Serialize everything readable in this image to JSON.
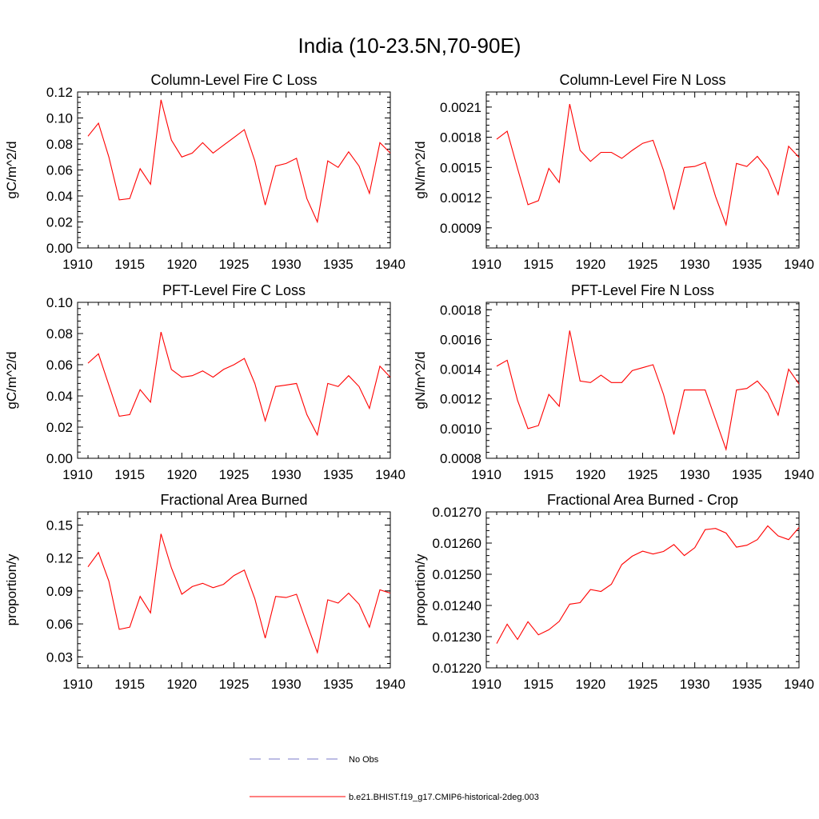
{
  "figure": {
    "title": "India (10-23.5N,70-90E)"
  },
  "legend": {
    "placement": "bottom-center",
    "entries": [
      {
        "label": "No Obs",
        "color": "#7b7bc8",
        "style": "dashed"
      },
      {
        "label": "b.e21.BHIST.f19_g17.CMIP6-historical-2deg.003",
        "color": "#ff0000",
        "style": "solid"
      }
    ]
  },
  "chart_data": [
    {
      "type": "line",
      "title": "Column-Level Fire C Loss",
      "xlabel": "",
      "ylabel": "gC/m^2/d",
      "xlim": [
        1910,
        1940
      ],
      "ylim": [
        0,
        0.12
      ],
      "xticks": [
        "1910",
        "1915",
        "1920",
        "1925",
        "1930",
        "1935",
        "1940"
      ],
      "yticks": [
        "0.00",
        "0.02",
        "0.04",
        "0.06",
        "0.08",
        "0.10",
        "0.12"
      ],
      "grid": false,
      "series": [
        {
          "name": "b.e21.BHIST.f19_g17.CMIP6-historical-2deg.003",
          "color": "#ff0000",
          "x": [
            1911,
            1912,
            1913,
            1914,
            1915,
            1916,
            1917,
            1918,
            1919,
            1920,
            1921,
            1922,
            1923,
            1924,
            1925,
            1926,
            1927,
            1928,
            1929,
            1930,
            1931,
            1932,
            1933,
            1934,
            1935,
            1936,
            1937,
            1938,
            1939,
            1940
          ],
          "y": [
            0.086,
            0.096,
            0.07,
            0.037,
            0.038,
            0.061,
            0.049,
            0.114,
            0.083,
            0.07,
            0.073,
            0.081,
            0.073,
            0.079,
            0.085,
            0.091,
            0.067,
            0.033,
            0.063,
            0.065,
            0.069,
            0.038,
            0.02,
            0.067,
            0.062,
            0.074,
            0.063,
            0.042,
            0.081,
            0.073
          ]
        }
      ]
    },
    {
      "type": "line",
      "title": "Column-Level Fire N Loss",
      "xlabel": "",
      "ylabel": "gN/m^2/d",
      "xlim": [
        1910,
        1940
      ],
      "ylim": [
        0.0007,
        0.00225
      ],
      "xticks": [
        "1910",
        "1915",
        "1920",
        "1925",
        "1930",
        "1935",
        "1940"
      ],
      "ytick_values": [
        0.0009,
        0.0012,
        0.0015,
        0.0018,
        0.0021
      ],
      "yticks": [
        "0.0009",
        "0.0012",
        "0.0015",
        "0.0018",
        "0.0021"
      ],
      "grid": false,
      "series": [
        {
          "name": "b.e21.BHIST.f19_g17.CMIP6-historical-2deg.003",
          "color": "#ff0000",
          "x": [
            1911,
            1912,
            1913,
            1914,
            1915,
            1916,
            1917,
            1918,
            1919,
            1920,
            1921,
            1922,
            1923,
            1924,
            1925,
            1926,
            1927,
            1928,
            1929,
            1930,
            1931,
            1932,
            1933,
            1934,
            1935,
            1936,
            1937,
            1938,
            1939,
            1940
          ],
          "y": [
            0.00178,
            0.00186,
            0.00149,
            0.00113,
            0.00117,
            0.00149,
            0.00135,
            0.00213,
            0.00167,
            0.00156,
            0.00165,
            0.00165,
            0.00159,
            0.00167,
            0.00174,
            0.00177,
            0.00147,
            0.00108,
            0.0015,
            0.00151,
            0.00155,
            0.00121,
            0.00093,
            0.00154,
            0.00151,
            0.00161,
            0.00148,
            0.00123,
            0.00171,
            0.0016
          ]
        }
      ]
    },
    {
      "type": "line",
      "title": "PFT-Level Fire C Loss",
      "xlabel": "",
      "ylabel": "gC/m^2/d",
      "xlim": [
        1910,
        1940
      ],
      "ylim": [
        0,
        0.1
      ],
      "xticks": [
        "1910",
        "1915",
        "1920",
        "1925",
        "1930",
        "1935",
        "1940"
      ],
      "yticks": [
        "0.00",
        "0.02",
        "0.04",
        "0.06",
        "0.08",
        "0.10"
      ],
      "grid": false,
      "series": [
        {
          "name": "b.e21.BHIST.f19_g17.CMIP6-historical-2deg.003",
          "color": "#ff0000",
          "x": [
            1911,
            1912,
            1913,
            1914,
            1915,
            1916,
            1917,
            1918,
            1919,
            1920,
            1921,
            1922,
            1923,
            1924,
            1925,
            1926,
            1927,
            1928,
            1929,
            1930,
            1931,
            1932,
            1933,
            1934,
            1935,
            1936,
            1937,
            1938,
            1939,
            1940
          ],
          "y": [
            0.061,
            0.067,
            0.047,
            0.027,
            0.028,
            0.044,
            0.036,
            0.081,
            0.057,
            0.052,
            0.053,
            0.056,
            0.052,
            0.057,
            0.06,
            0.064,
            0.048,
            0.024,
            0.046,
            0.047,
            0.048,
            0.028,
            0.015,
            0.048,
            0.046,
            0.053,
            0.046,
            0.032,
            0.059,
            0.052
          ]
        }
      ]
    },
    {
      "type": "line",
      "title": "PFT-Level Fire N Loss",
      "xlabel": "",
      "ylabel": "gN/m^2/d",
      "xlim": [
        1910,
        1940
      ],
      "ylim": [
        0.0008,
        0.00185
      ],
      "xticks": [
        "1910",
        "1915",
        "1920",
        "1925",
        "1930",
        "1935",
        "1940"
      ],
      "ytick_values": [
        0.0008,
        0.001,
        0.0012,
        0.0014,
        0.0016,
        0.0018
      ],
      "yticks": [
        "0.0008",
        "0.0010",
        "0.0012",
        "0.0014",
        "0.0016",
        "0.0018"
      ],
      "grid": false,
      "series": [
        {
          "name": "b.e21.BHIST.f19_g17.CMIP6-historical-2deg.003",
          "color": "#ff0000",
          "x": [
            1911,
            1912,
            1913,
            1914,
            1915,
            1916,
            1917,
            1918,
            1919,
            1920,
            1921,
            1922,
            1923,
            1924,
            1925,
            1926,
            1927,
            1928,
            1929,
            1930,
            1931,
            1932,
            1933,
            1934,
            1935,
            1936,
            1937,
            1938,
            1939,
            1940
          ],
          "y": [
            0.00142,
            0.00146,
            0.00119,
            0.001,
            0.00102,
            0.00123,
            0.00115,
            0.00166,
            0.00132,
            0.00131,
            0.00136,
            0.00131,
            0.00131,
            0.00139,
            0.00141,
            0.00143,
            0.00123,
            0.00096,
            0.00126,
            0.00126,
            0.00126,
            0.00106,
            0.00086,
            0.00126,
            0.00127,
            0.00132,
            0.00124,
            0.00109,
            0.0014,
            0.0013
          ]
        }
      ]
    },
    {
      "type": "line",
      "title": "Fractional Area Burned",
      "xlabel": "",
      "ylabel": "proportion/y",
      "xlim": [
        1910,
        1940
      ],
      "ylim": [
        0.02,
        0.162
      ],
      "xticks": [
        "1910",
        "1915",
        "1920",
        "1925",
        "1930",
        "1935",
        "1940"
      ],
      "ytick_values": [
        0.03,
        0.06,
        0.09,
        0.12,
        0.15
      ],
      "yticks": [
        "0.03",
        "0.06",
        "0.09",
        "0.12",
        "0.15"
      ],
      "grid": false,
      "series": [
        {
          "name": "b.e21.BHIST.f19_g17.CMIP6-historical-2deg.003",
          "color": "#ff0000",
          "x": [
            1911,
            1912,
            1913,
            1914,
            1915,
            1916,
            1917,
            1918,
            1919,
            1920,
            1921,
            1922,
            1923,
            1924,
            1925,
            1926,
            1927,
            1928,
            1929,
            1930,
            1931,
            1932,
            1933,
            1934,
            1935,
            1936,
            1937,
            1938,
            1939,
            1940
          ],
          "y": [
            0.112,
            0.125,
            0.099,
            0.055,
            0.057,
            0.085,
            0.07,
            0.142,
            0.111,
            0.087,
            0.094,
            0.097,
            0.093,
            0.096,
            0.104,
            0.109,
            0.083,
            0.047,
            0.085,
            0.084,
            0.087,
            0.06,
            0.034,
            0.082,
            0.079,
            0.088,
            0.078,
            0.057,
            0.091,
            0.088
          ]
        }
      ]
    },
    {
      "type": "line",
      "title": "Fractional Area Burned - Crop",
      "xlabel": "",
      "ylabel": "proportion/y",
      "xlim": [
        1910,
        1940
      ],
      "ylim": [
        0.0122,
        0.0127
      ],
      "xticks": [
        "1910",
        "1915",
        "1920",
        "1925",
        "1930",
        "1935",
        "1940"
      ],
      "ytick_values": [
        0.0122,
        0.0123,
        0.0124,
        0.0125,
        0.0126,
        0.0127
      ],
      "yticks": [
        "0.01220",
        "0.01230",
        "0.01240",
        "0.01250",
        "0.01260",
        "0.01270"
      ],
      "grid": false,
      "series": [
        {
          "name": "b.e21.BHIST.f19_g17.CMIP6-historical-2deg.003",
          "color": "#ff0000",
          "x": [
            1911,
            1912,
            1913,
            1914,
            1915,
            1916,
            1917,
            1918,
            1919,
            1920,
            1921,
            1922,
            1923,
            1924,
            1925,
            1926,
            1927,
            1928,
            1929,
            1930,
            1931,
            1932,
            1933,
            1934,
            1935,
            1936,
            1937,
            1938,
            1939,
            1940
          ],
          "y": [
            0.012278,
            0.01234,
            0.012291,
            0.012348,
            0.012306,
            0.012322,
            0.012349,
            0.012404,
            0.012409,
            0.012451,
            0.012445,
            0.012468,
            0.012531,
            0.012558,
            0.012574,
            0.012565,
            0.012573,
            0.012595,
            0.01256,
            0.012585,
            0.012643,
            0.012647,
            0.012632,
            0.012587,
            0.012593,
            0.012611,
            0.012655,
            0.012623,
            0.012611,
            0.01265
          ]
        }
      ]
    }
  ]
}
